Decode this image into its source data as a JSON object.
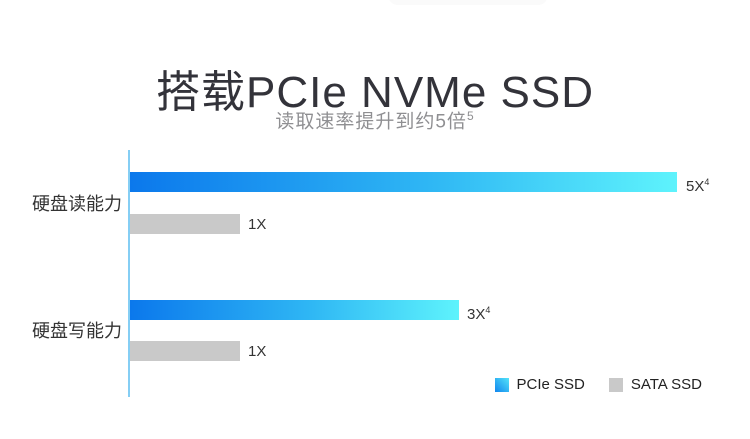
{
  "header": {
    "title": "搭载PCIe NVMe SSD",
    "subtitle": "读取速率提升到约5倍",
    "subtitle_sup": "5"
  },
  "chart_data": {
    "type": "bar",
    "orientation": "horizontal",
    "title": "搭载PCIe NVMe SSD",
    "subtitle": "读取速率提升到约5倍(5)",
    "categories": [
      "硬盘读能力",
      "硬盘写能力"
    ],
    "series": [
      {
        "name": "PCIe SSD",
        "values": [
          5,
          3
        ],
        "value_labels": [
          {
            "text": "5X",
            "sup": "4"
          },
          {
            "text": "3X",
            "sup": "4"
          }
        ],
        "color_start": "#0b78ec",
        "color_end": "#5ef3fc"
      },
      {
        "name": "SATA SSD",
        "values": [
          1,
          1
        ],
        "value_labels": [
          {
            "text": "1X",
            "sup": ""
          },
          {
            "text": "1X",
            "sup": ""
          }
        ],
        "color": "#c9c9c9"
      }
    ],
    "x_axis": {
      "min": 0,
      "unit": "relative speed (X)"
    },
    "axis_line_color": "#85cef4",
    "grid": false,
    "legend": {
      "position": "bottom-right",
      "items": [
        "PCIe SSD",
        "SATA SSD"
      ]
    }
  }
}
